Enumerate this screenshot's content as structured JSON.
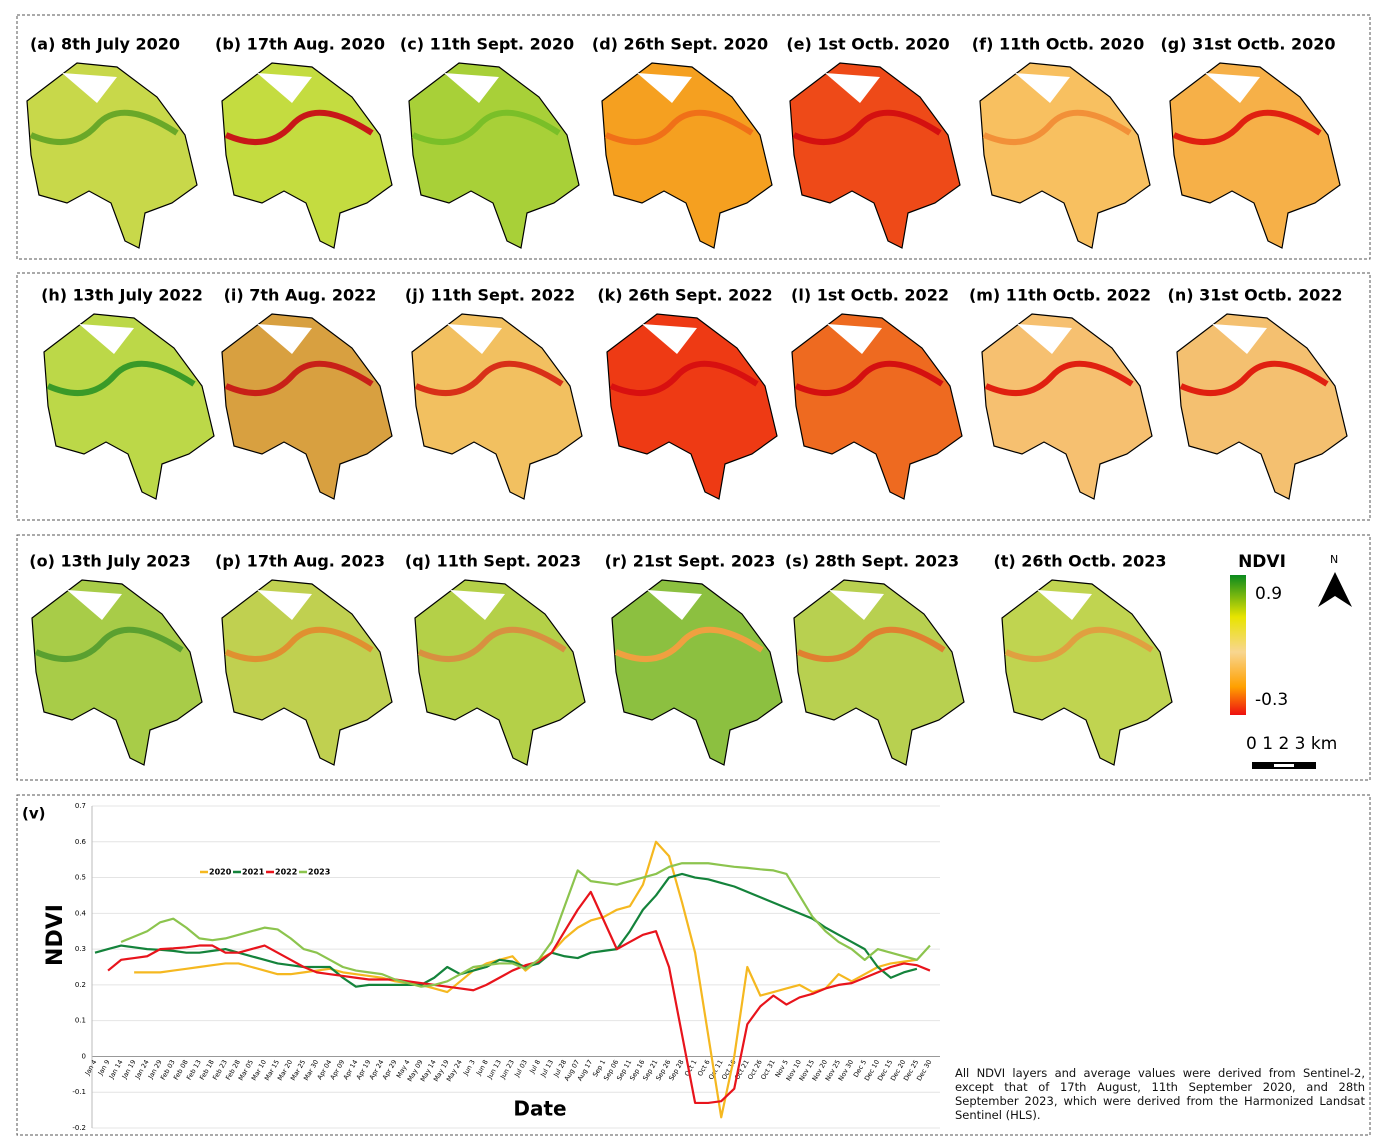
{
  "rows": [
    {
      "panels": [
        "(a) 8th July 2020",
        "(b) 17th Aug. 2020",
        "(c) 11th Sept. 2020",
        "(d) 26th Sept. 2020",
        "(e) 1st Octb. 2020",
        "(f) 11th Octb. 2020",
        "(g)  31st Octb. 2020"
      ]
    },
    {
      "panels": [
        "(h) 13th July 2022",
        "(i) 7th Aug. 2022",
        "(j) 11th Sept. 2022",
        "(k) 26th Sept. 2022",
        "(l) 1st Octb. 2022",
        "(m) 11th Octb. 2022",
        "(n) 31st Octb. 2022"
      ]
    },
    {
      "panels": [
        "(o) 13th July 2023",
        "(p) 17th Aug. 2023",
        "(q) 11th Sept. 2023",
        "(r) 21st Sept. 2023",
        "(s) 28th Sept. 2023",
        "(t) 26th Octb. 2023"
      ]
    }
  ],
  "legend": {
    "title": "NDVI",
    "max": 0.9,
    "min": -0.3,
    "north": "N",
    "scale": "0 1 2 3 km"
  },
  "chart_data": {
    "type": "line",
    "label": "(v)",
    "y_label": "NDVI",
    "x_label": "Date",
    "categories": [
      "Jan 4",
      "Jan 9",
      "Jan 14",
      "Jan 19",
      "Jan 24",
      "Jan 29",
      "Feb 03",
      "Feb 08",
      "Feb 13",
      "Feb 18",
      "Feb 23",
      "Feb 28",
      "Mar 05",
      "Mar 10",
      "Mar 15",
      "Mar 20",
      "Mar 25",
      "Mar 30",
      "Apr 04",
      "Apr 09",
      "Apr 14",
      "Apr 19",
      "Apr 24",
      "Apr 29",
      "May 4",
      "May 09",
      "May 14",
      "May 19",
      "May 24",
      "Jun 3",
      "Jun 8",
      "Jun 13",
      "Jun 23",
      "Jul 03",
      "Jul 8",
      "Jul 13",
      "Jul 28",
      "Aug 07",
      "Aug 17",
      "Sep 1",
      "Sep 06",
      "Sep 11",
      "Sep 16",
      "Sep 21",
      "Sep 26",
      "Sep 28",
      "Oct 1",
      "Oct 6",
      "Oct 11",
      "Oct 16",
      "Oct 21",
      "Oct 26",
      "Oct 31",
      "Nov 5",
      "Nov 10",
      "Nov 15",
      "Nov 20",
      "Nov 25",
      "Nov 30",
      "Dec 5",
      "Dec 10",
      "Dec 15",
      "Dec 20",
      "Dec 25",
      "Dec 30"
    ],
    "ylim": [
      -0.2,
      0.7
    ],
    "yticks": [
      -0.2,
      -0.1,
      0,
      0.1,
      0.2,
      0.3,
      0.4,
      0.5,
      0.6,
      0.7
    ],
    "grid": true,
    "legend_position": "upper left",
    "series": [
      {
        "name": "2020",
        "color": "#f5b820",
        "values": [
          null,
          null,
          null,
          0.235,
          0.235,
          0.235,
          0.24,
          0.245,
          0.25,
          0.255,
          0.26,
          0.26,
          0.25,
          0.24,
          0.23,
          0.23,
          0.235,
          0.24,
          0.245,
          0.235,
          0.23,
          0.225,
          0.22,
          0.21,
          0.205,
          0.2,
          0.19,
          0.18,
          0.21,
          0.24,
          0.26,
          0.27,
          0.28,
          0.24,
          0.27,
          0.29,
          0.33,
          0.36,
          0.38,
          0.39,
          0.41,
          0.42,
          0.48,
          0.6,
          0.56,
          0.43,
          0.29,
          0.06,
          -0.17,
          0.0,
          0.25,
          0.17,
          0.18,
          0.19,
          0.2,
          0.18,
          0.19,
          0.23,
          0.21,
          0.23,
          0.25,
          0.26,
          0.265,
          0.27,
          null
        ]
      },
      {
        "name": "2021",
        "color": "#14833b",
        "values": [
          0.29,
          0.3,
          0.31,
          0.305,
          0.3,
          0.298,
          0.295,
          0.29,
          0.29,
          0.295,
          0.3,
          0.29,
          0.28,
          0.27,
          0.26,
          0.255,
          0.25,
          0.25,
          0.25,
          0.22,
          0.195,
          0.2,
          0.2,
          0.2,
          0.2,
          0.2,
          0.22,
          0.25,
          0.23,
          0.24,
          0.25,
          0.27,
          0.265,
          0.25,
          0.26,
          0.29,
          0.28,
          0.275,
          0.29,
          0.295,
          0.3,
          0.35,
          0.41,
          0.45,
          0.5,
          0.51,
          0.5,
          0.495,
          0.485,
          0.475,
          0.46,
          0.445,
          0.43,
          0.415,
          0.4,
          0.385,
          0.36,
          0.34,
          0.32,
          0.3,
          0.25,
          0.22,
          0.235,
          0.245,
          null
        ]
      },
      {
        "name": "2022",
        "color": "#e8141c",
        "values": [
          null,
          0.24,
          0.27,
          0.275,
          0.28,
          0.3,
          0.302,
          0.305,
          0.31,
          0.31,
          0.29,
          0.29,
          0.3,
          0.31,
          0.29,
          0.27,
          0.25,
          0.235,
          0.23,
          0.225,
          0.22,
          0.215,
          0.215,
          0.215,
          0.21,
          0.205,
          0.2,
          0.195,
          0.19,
          0.185,
          0.2,
          0.22,
          0.24,
          0.255,
          0.265,
          0.29,
          0.35,
          0.41,
          0.46,
          0.38,
          0.3,
          0.32,
          0.34,
          0.35,
          0.25,
          0.06,
          -0.13,
          -0.13,
          -0.125,
          -0.09,
          0.09,
          0.14,
          0.17,
          0.145,
          0.165,
          0.175,
          0.19,
          0.2,
          0.205,
          0.22,
          0.235,
          0.25,
          0.26,
          0.255,
          0.24
        ]
      },
      {
        "name": "2023",
        "color": "#8cc44e",
        "values": [
          null,
          null,
          0.32,
          0.335,
          0.35,
          0.375,
          0.385,
          0.36,
          0.33,
          0.325,
          0.33,
          0.34,
          0.35,
          0.36,
          0.355,
          0.33,
          0.3,
          0.29,
          0.27,
          0.25,
          0.24,
          0.235,
          0.23,
          0.215,
          0.205,
          0.195,
          0.2,
          0.21,
          0.23,
          0.25,
          0.255,
          0.26,
          0.26,
          0.245,
          0.27,
          0.32,
          0.42,
          0.52,
          0.49,
          0.485,
          0.48,
          0.49,
          0.5,
          0.51,
          0.53,
          0.54,
          0.54,
          0.54,
          0.535,
          0.53,
          0.527,
          0.523,
          0.52,
          0.51,
          0.45,
          0.39,
          0.35,
          0.32,
          0.3,
          0.27,
          0.3,
          0.29,
          0.28,
          0.27,
          0.31
        ]
      }
    ]
  },
  "note": "All NDVI layers and average values were derived from Sentinel-2, except that of 17th August, 11th September 2020, and 28th September 2023, which were derived from the Harmonized Landsat Sentinel (HLS)."
}
